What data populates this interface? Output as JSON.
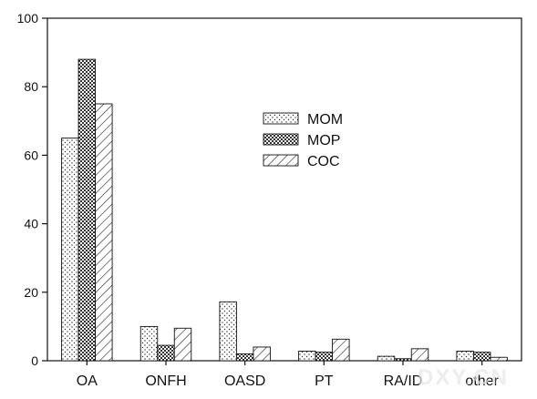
{
  "chart_data": {
    "type": "bar",
    "title": "",
    "xlabel": "",
    "ylabel": "",
    "ylim": [
      0,
      100
    ],
    "yticks": [
      0,
      20,
      40,
      60,
      80,
      100
    ],
    "categories": [
      "OA",
      "ONFH",
      "OASD",
      "PT",
      "RA/ID",
      "other"
    ],
    "series": [
      {
        "name": "MOM",
        "pattern": "dots-sparse",
        "values": [
          65,
          10,
          17.2,
          2.8,
          1.3,
          2.8
        ]
      },
      {
        "name": "MOP",
        "pattern": "dots-dense",
        "values": [
          88,
          4.5,
          2,
          2.5,
          0.6,
          2.5
        ]
      },
      {
        "name": "COC",
        "pattern": "diagonal-hatch",
        "values": [
          75,
          9.5,
          4,
          6.3,
          3.5,
          1
        ]
      }
    ],
    "grid": false,
    "legend_position": "top-center"
  },
  "watermark": "DXY.CN"
}
